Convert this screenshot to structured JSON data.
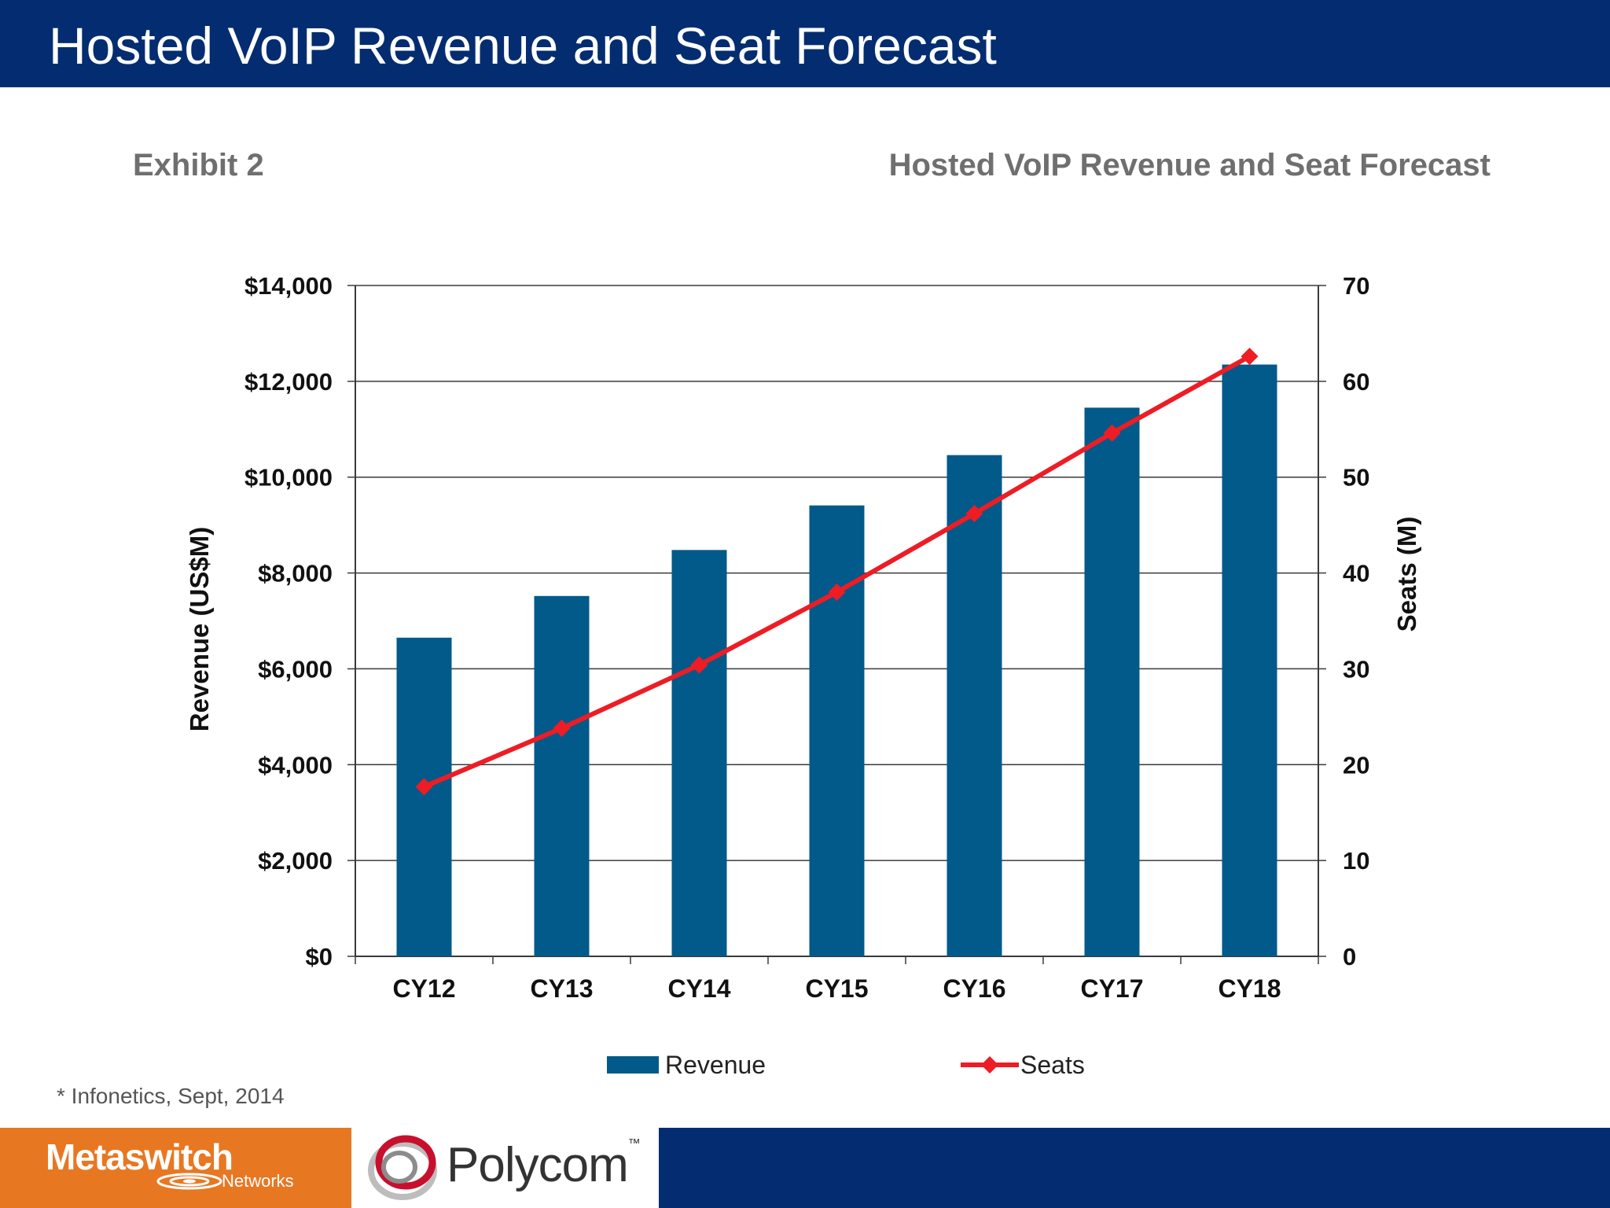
{
  "slide": {
    "title": "Hosted VoIP Revenue and Seat Forecast",
    "exhibit": "Exhibit 2",
    "chart_heading": "Hosted VoIP Revenue and Seat Forecast",
    "source": "* Infonetics, Sept, 2014"
  },
  "logos": {
    "metaswitch": "Metaswitch",
    "metaswitch_sub": "Networks",
    "polycom": "Polycom",
    "polycom_tm": "™"
  },
  "colors": {
    "header": "#032d70",
    "footer_blue": "#032d70",
    "footer_orange": "#e87722",
    "revenue_bar": "#015a8a",
    "seats_line": "#ee1c24"
  },
  "chart_data": {
    "type": "bar",
    "categories": [
      "CY12",
      "CY13",
      "CY14",
      "CY15",
      "CY16",
      "CY17",
      "CY18"
    ],
    "series": [
      {
        "name": "Revenue",
        "type": "bar",
        "axis": "left",
        "color": "#015a8a",
        "values": [
          6650,
          7520,
          8480,
          9410,
          10460,
          11450,
          12350
        ]
      },
      {
        "name": "Seats",
        "type": "line",
        "axis": "right",
        "color": "#ee1c24",
        "values": [
          17.7,
          23.8,
          30.4,
          38.0,
          46.2,
          54.6,
          62.6
        ]
      }
    ],
    "ylabel": "Revenue (US$M)",
    "y2label": "Seats (M)",
    "ylim": [
      0,
      14000
    ],
    "y2lim": [
      0,
      70
    ],
    "yticks": [
      "$0",
      "$2,000",
      "$4,000",
      "$6,000",
      "$8,000",
      "$10,000",
      "$12,000",
      "$14,000"
    ],
    "y2ticks": [
      "0",
      "10",
      "20",
      "30",
      "40",
      "50",
      "60",
      "70"
    ],
    "grid": true,
    "legend": "bottom-center"
  }
}
